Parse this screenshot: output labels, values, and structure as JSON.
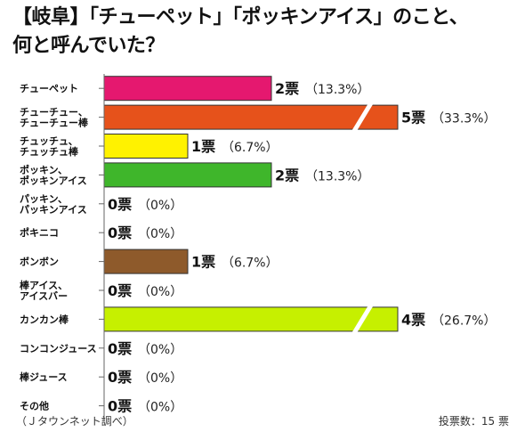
{
  "title_line1": "【岐阜】「チューペット」「ポッキンアイス」のこと、",
  "title_line2": "何と呼んでいた？",
  "source_note": "（Ｊタウンネット調べ）",
  "total_note": "投票数：15 票",
  "colors": {
    "tick": "#666666",
    "bar_stroke": "#333333",
    "break_mark": "#ffffff"
  },
  "chart_data": {
    "type": "bar",
    "orientation": "horizontal",
    "title": "【岐阜】「チューペット」「ポッキンアイス」のこと、何と呼んでいた？",
    "categories": [
      "チューペット",
      "チューチュー、\nチューチュー棒",
      "チュッチュ、\nチュッチュ棒",
      "ポッキン、\nポッキンアイス",
      "パッキン、\nパッキンアイス",
      "ポキニコ",
      "ボンボン",
      "棒アイス、\nアイスバー",
      "カンカン棒",
      "コンコンジュース",
      "棒ジュース",
      "その他"
    ],
    "values": [
      2,
      5,
      1,
      2,
      0,
      0,
      1,
      0,
      4,
      0,
      0,
      0
    ],
    "percentages": [
      "13.3%",
      "33.3%",
      "6.7%",
      "13.3%",
      "0%",
      "0%",
      "6.7%",
      "0%",
      "26.7%",
      "0%",
      "0%",
      "0%"
    ],
    "count_labels": [
      "2票",
      "5票",
      "1票",
      "2票",
      "0票",
      "0票",
      "1票",
      "0票",
      "4票",
      "0票",
      "0票",
      "0票"
    ],
    "pct_labels": [
      "（13.3%）",
      "（33.3%）",
      "（6.7%）",
      "（13.3%）",
      "（0%）",
      "（0%）",
      "（6.7%）",
      "（0%）",
      "（26.7%）",
      "（0%）",
      "（0%）",
      "（0%）"
    ],
    "colors": [
      "#e5186f",
      "#e6521b",
      "#fff200",
      "#3fb62b",
      "#cccccc",
      "#cccccc",
      "#8e5a2b",
      "#cccccc",
      "#c6f000",
      "#cccccc",
      "#cccccc",
      "#cccccc"
    ],
    "broken_axis_bars": [
      1,
      8
    ],
    "total_votes": 15,
    "xlabel": "",
    "ylabel": "",
    "grid": false,
    "legend": "none"
  }
}
